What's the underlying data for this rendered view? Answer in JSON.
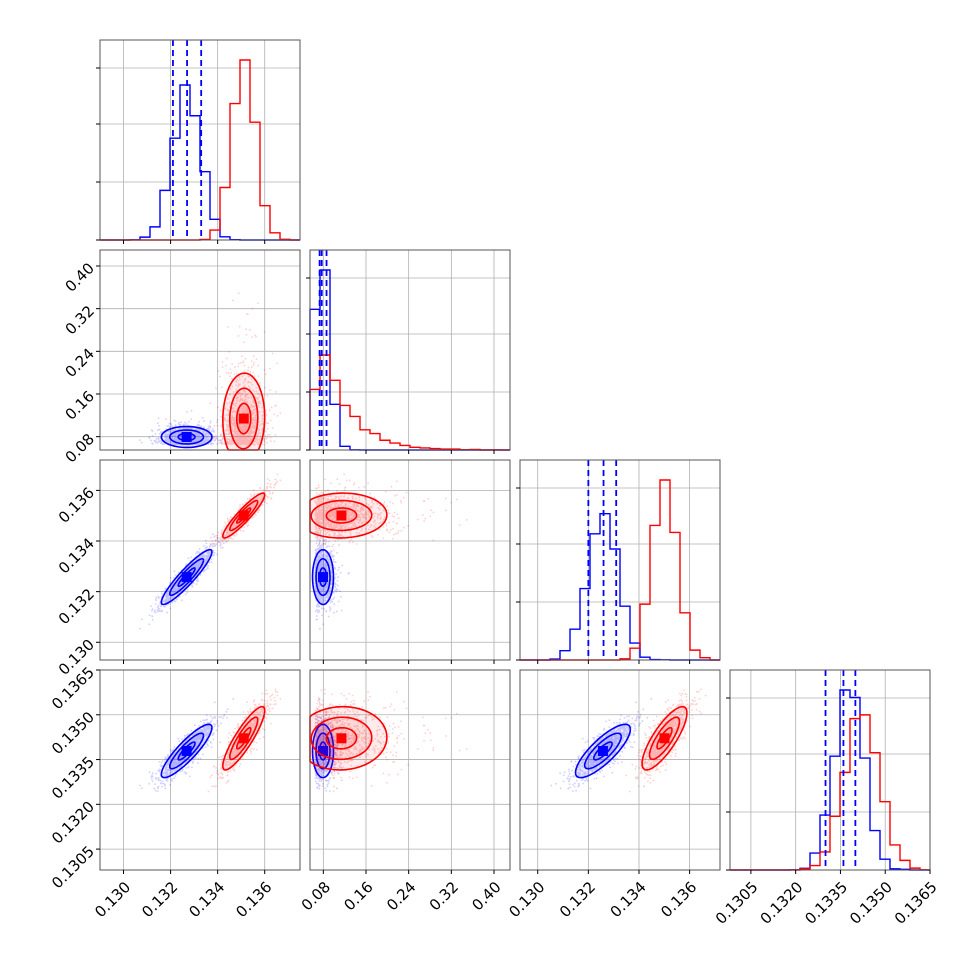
{
  "chart_data": {
    "type": "scatter",
    "subtype": "corner-plot",
    "grid": true,
    "colors": {
      "blue": "#0000ff",
      "red": "#ff0000"
    },
    "series": [
      {
        "color": "blue",
        "mean": [
          0.1327,
          0.09,
          0.1326,
          0.1338
        ],
        "sd": [
          0.0006,
          0.008,
          0.0006,
          0.0005
        ],
        "quantile_lines": [
          [
            0.1321,
            0.1327,
            0.1333
          ],
          [
            0.073,
            0.077,
            0.086
          ],
          [
            0.132,
            0.1326,
            0.1331
          ],
          [
            0.133,
            0.1336,
            0.134
          ]
        ]
      },
      {
        "color": "red",
        "mean": [
          0.1351,
          0.12,
          0.135,
          0.1342
        ],
        "sd": [
          0.0005,
          0.06,
          0.0005,
          0.0006
        ],
        "quantile_lines": null
      }
    ],
    "axes": [
      {
        "range": [
          0.129,
          0.1375
        ],
        "ticks": [
          0.13,
          0.132,
          0.134,
          0.136
        ],
        "tick_labels": [
          "0.130",
          "0.132",
          "0.134",
          "0.136"
        ]
      },
      {
        "range": [
          0.055,
          0.43
        ],
        "ticks": [
          0.08,
          0.16,
          0.24,
          0.32,
          0.4
        ],
        "tick_labels": [
          "0.08",
          "0.16",
          "0.24",
          "0.32",
          "0.40"
        ]
      },
      {
        "range": [
          0.1293,
          0.1372
        ],
        "ticks": [
          0.13,
          0.132,
          0.134,
          0.136
        ],
        "tick_labels": [
          "0.130",
          "0.132",
          "0.134",
          "0.136"
        ]
      },
      {
        "range": [
          0.1298,
          0.1365
        ],
        "ticks": [
          0.1305,
          0.132,
          0.1335,
          0.135,
          0.1365
        ],
        "tick_labels": [
          "0.1305",
          "0.1320",
          "0.1335",
          "0.1350",
          "0.1365"
        ]
      }
    ]
  }
}
